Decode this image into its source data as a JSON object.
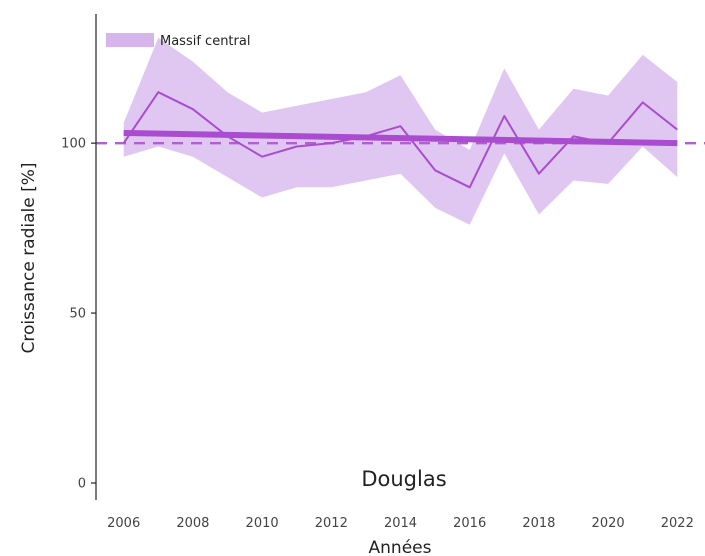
{
  "chart_data": {
    "type": "line",
    "title": "Douglas",
    "xlabel": "Années",
    "ylabel": "Croissance radiale [%]",
    "x_ticks": [
      "2006",
      "2008",
      "2010",
      "2012",
      "2014",
      "2016",
      "2018",
      "2020",
      "2022"
    ],
    "y_ticks": [
      "0",
      "50",
      "100"
    ],
    "xlim": [
      2005.2,
      2022.8
    ],
    "ylim": [
      -5,
      138
    ],
    "grid": false,
    "legend_position": "top-left",
    "reference_line": {
      "y": 100,
      "style": "dashed"
    },
    "colors": {
      "ribbon": "#d6b4ec",
      "line": "#a94cd0",
      "trend": "#a94cd0",
      "reference": "#b060d0",
      "axis": "#222222"
    },
    "series": [
      {
        "name": "Massif central",
        "x": [
          2006,
          2007,
          2008,
          2009,
          2010,
          2011,
          2012,
          2013,
          2014,
          2015,
          2016,
          2017,
          2018,
          2019,
          2020,
          2021,
          2022
        ],
        "values": [
          100,
          115,
          110,
          102,
          96,
          99,
          100,
          102,
          105,
          92,
          87,
          108,
          91,
          102,
          100,
          112,
          104
        ],
        "upper": [
          106,
          131,
          124,
          115,
          109,
          111,
          113,
          115,
          120,
          104,
          98,
          122,
          104,
          116,
          114,
          126,
          118
        ],
        "lower": [
          96,
          99,
          96,
          90,
          84,
          87,
          87,
          89,
          91,
          81,
          76,
          97,
          79,
          89,
          88,
          99,
          90
        ]
      }
    ],
    "trend": {
      "x": [
        2006,
        2022
      ],
      "y": [
        103,
        100
      ]
    }
  }
}
